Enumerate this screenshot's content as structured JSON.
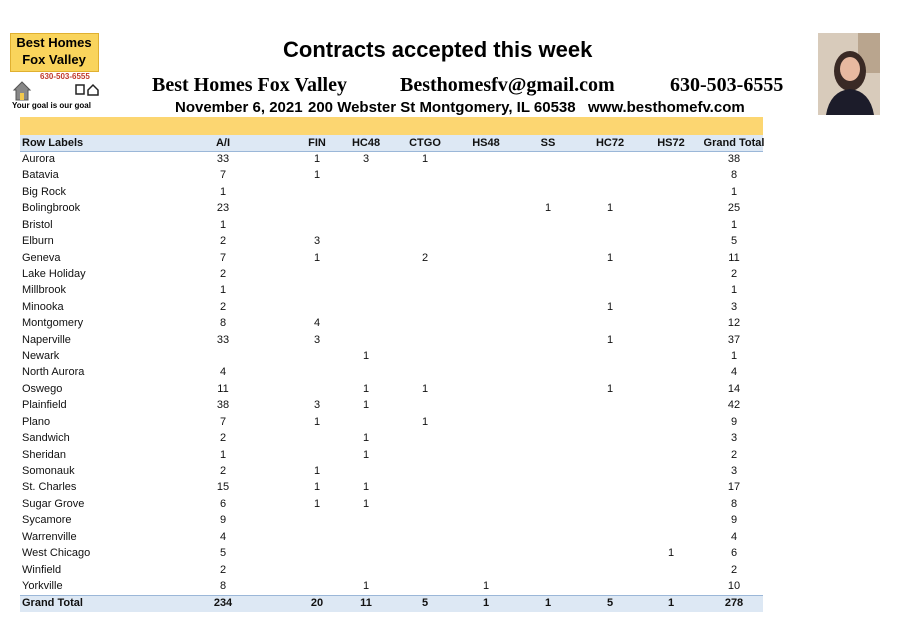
{
  "logo": {
    "line1": "Best Homes",
    "line2": "Fox Valley",
    "phone": "630-503-6555",
    "tagline": "Your goal is our goal"
  },
  "header": {
    "title": "Contracts accepted this week",
    "company": "Best Homes Fox Valley",
    "email": "Besthomesfv@gmail.com",
    "phone": "630-503-6555",
    "date": "November 6, 2021",
    "address": "200 Webster St Montgomery, IL 60538",
    "website": "www.besthomefv.com"
  },
  "table": {
    "header": [
      "Row Labels",
      "A/I",
      "FIN",
      "HC48",
      "CTGO",
      "HS48",
      "SS",
      "HC72",
      "HS72",
      "Grand Total"
    ],
    "rows": [
      [
        "Aurora",
        33,
        1,
        3,
        1,
        null,
        null,
        null,
        null,
        38
      ],
      [
        "Batavia",
        7,
        1,
        null,
        null,
        null,
        null,
        null,
        null,
        8
      ],
      [
        "Big Rock",
        1,
        null,
        null,
        null,
        null,
        null,
        null,
        null,
        1
      ],
      [
        "Bolingbrook",
        23,
        null,
        null,
        null,
        null,
        1,
        1,
        null,
        25
      ],
      [
        "Bristol",
        1,
        null,
        null,
        null,
        null,
        null,
        null,
        null,
        1
      ],
      [
        "Elburn",
        2,
        3,
        null,
        null,
        null,
        null,
        null,
        null,
        5
      ],
      [
        "Geneva",
        7,
        1,
        null,
        2,
        null,
        null,
        1,
        null,
        11
      ],
      [
        "Lake Holiday",
        2,
        null,
        null,
        null,
        null,
        null,
        null,
        null,
        2
      ],
      [
        "Millbrook",
        1,
        null,
        null,
        null,
        null,
        null,
        null,
        null,
        1
      ],
      [
        "Minooka",
        2,
        null,
        null,
        null,
        null,
        null,
        1,
        null,
        3
      ],
      [
        "Montgomery",
        8,
        4,
        null,
        null,
        null,
        null,
        null,
        null,
        12
      ],
      [
        "Naperville",
        33,
        3,
        null,
        null,
        null,
        null,
        1,
        null,
        37
      ],
      [
        "Newark",
        null,
        null,
        1,
        null,
        null,
        null,
        null,
        null,
        1
      ],
      [
        "North Aurora",
        4,
        null,
        null,
        null,
        null,
        null,
        null,
        null,
        4
      ],
      [
        "Oswego",
        11,
        null,
        1,
        1,
        null,
        null,
        1,
        null,
        14
      ],
      [
        "Plainfield",
        38,
        3,
        1,
        null,
        null,
        null,
        null,
        null,
        42
      ],
      [
        "Plano",
        7,
        1,
        null,
        1,
        null,
        null,
        null,
        null,
        9
      ],
      [
        "Sandwich",
        2,
        null,
        1,
        null,
        null,
        null,
        null,
        null,
        3
      ],
      [
        "Sheridan",
        1,
        null,
        1,
        null,
        null,
        null,
        null,
        null,
        2
      ],
      [
        "Somonauk",
        2,
        1,
        null,
        null,
        null,
        null,
        null,
        null,
        3
      ],
      [
        "St. Charles",
        15,
        1,
        1,
        null,
        null,
        null,
        null,
        null,
        17
      ],
      [
        "Sugar Grove",
        6,
        1,
        1,
        null,
        null,
        null,
        null,
        null,
        8
      ],
      [
        "Sycamore",
        9,
        null,
        null,
        null,
        null,
        null,
        null,
        null,
        9
      ],
      [
        "Warrenville",
        4,
        null,
        null,
        null,
        null,
        null,
        null,
        null,
        4
      ],
      [
        "West Chicago",
        5,
        null,
        null,
        null,
        null,
        null,
        null,
        1,
        6
      ],
      [
        "Winfield",
        2,
        null,
        null,
        null,
        null,
        null,
        null,
        null,
        2
      ],
      [
        "Yorkville",
        8,
        null,
        1,
        null,
        1,
        null,
        null,
        null,
        10
      ]
    ],
    "total": [
      "Grand Total",
      234,
      20,
      11,
      5,
      1,
      1,
      5,
      1,
      278
    ]
  }
}
